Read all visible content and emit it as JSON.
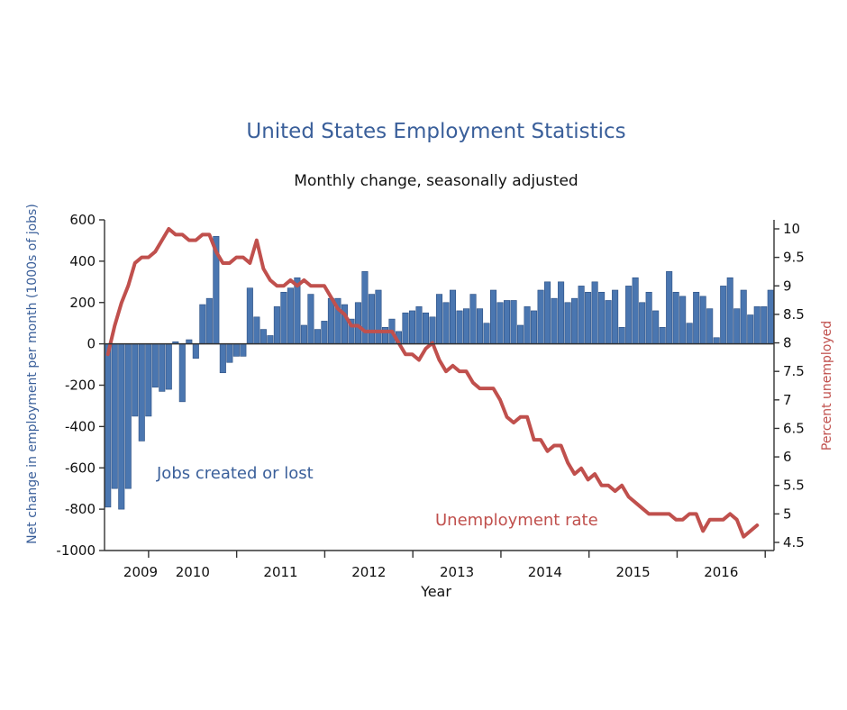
{
  "chart_data": {
    "type": "bar",
    "title": "United States Employment Statistics",
    "subtitle": "Monthly change, seasonally adjusted",
    "xlabel": "Year",
    "ylabel_left": "Net change in employment per month (1000s of jobs)",
    "ylabel_right": "Percent unemployed",
    "ylim_left": [
      -1000,
      600
    ],
    "ylim_right": [
      4.5,
      10
    ],
    "yticks_left": [
      "600",
      "400",
      "200",
      "0",
      "-200",
      "-400",
      "-600",
      "-800",
      "-1000"
    ],
    "yticks_right": [
      "10",
      "9.5",
      "9",
      "8.5",
      "8",
      "7.5",
      "7",
      "6.5",
      "6",
      "5.5",
      "5",
      "4.5"
    ],
    "year_labels": [
      "2009",
      "2010",
      "2011",
      "2012",
      "2013",
      "2014",
      "2015",
      "2016"
    ],
    "annotations": {
      "jobs": "Jobs created or lost",
      "rate": "Unemployment rate"
    },
    "colors": {
      "bars": "#4a76b0",
      "line": "#c0504d",
      "title": "#3a5f9a"
    },
    "series": [
      {
        "name": "Jobs created or lost",
        "kind": "bar",
        "axis": "left",
        "values": [
          -790,
          -700,
          -800,
          -700,
          -350,
          -470,
          -350,
          -210,
          -230,
          -220,
          10,
          -280,
          20,
          -70,
          190,
          220,
          520,
          -140,
          -90,
          -60,
          -60,
          270,
          130,
          70,
          40,
          180,
          250,
          270,
          320,
          90,
          240,
          70,
          110,
          220,
          220,
          190,
          120,
          200,
          350,
          240,
          260,
          80,
          120,
          60,
          150,
          160,
          180,
          150,
          130,
          240,
          200,
          260,
          160,
          170,
          240,
          170,
          100,
          260,
          200,
          210,
          210,
          90,
          180,
          160,
          260,
          300,
          220,
          300,
          200,
          220,
          280,
          250,
          300,
          250,
          210,
          260,
          80,
          280,
          320,
          200,
          250,
          160,
          80,
          350,
          250,
          230,
          100,
          250,
          230,
          170,
          30,
          280,
          320,
          170,
          260,
          140,
          180,
          180,
          260
        ]
      },
      {
        "name": "Unemployment rate",
        "kind": "line",
        "axis": "right",
        "values": [
          7.8,
          8.3,
          8.7,
          9.0,
          9.4,
          9.5,
          9.5,
          9.6,
          9.8,
          10.0,
          9.9,
          9.9,
          9.8,
          9.8,
          9.9,
          9.9,
          9.6,
          9.4,
          9.4,
          9.5,
          9.5,
          9.4,
          9.8,
          9.3,
          9.1,
          9.0,
          9.0,
          9.1,
          9.0,
          9.1,
          9.0,
          9.0,
          9.0,
          8.8,
          8.6,
          8.5,
          8.3,
          8.3,
          8.2,
          8.2,
          8.2,
          8.2,
          8.2,
          8.0,
          7.8,
          7.8,
          7.7,
          7.9,
          8.0,
          7.7,
          7.5,
          7.6,
          7.5,
          7.5,
          7.3,
          7.2,
          7.2,
          7.2,
          7.0,
          6.7,
          6.6,
          6.7,
          6.7,
          6.3,
          6.3,
          6.1,
          6.2,
          6.2,
          5.9,
          5.7,
          5.8,
          5.6,
          5.7,
          5.5,
          5.5,
          5.4,
          5.5,
          5.3,
          5.2,
          5.1,
          5.0,
          5.0,
          5.0,
          5.0,
          4.9,
          4.9,
          5.0,
          5.0,
          4.7,
          4.9,
          4.9,
          4.9,
          5.0,
          4.9,
          4.6,
          4.7,
          4.8
        ]
      }
    ]
  }
}
